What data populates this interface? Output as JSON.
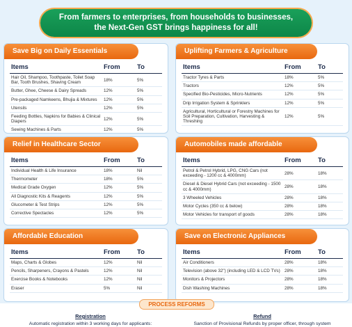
{
  "header": {
    "tagline": [
      "From farmers to enterprises, from households to businesses,",
      "the Next-Gen GST brings happiness for all!"
    ]
  },
  "panels": [
    {
      "title": "Save Big on Daily Essentials",
      "columns": [
        "Items",
        "From",
        "To"
      ],
      "rows": [
        [
          "Hair Oil, Shampoo, Toothpaste, Toilet Soap Bar, Tooth Brushes, Shaving Cream",
          "18%",
          "5%"
        ],
        [
          "Butter, Ghee, Cheese & Dairy Spreads",
          "12%",
          "5%"
        ],
        [
          "Pre-packaged Namkeens, Bhujia & Mixtures",
          "12%",
          "5%"
        ],
        [
          "Utensils",
          "12%",
          "5%"
        ],
        [
          "Feeding Bottles, Napkins for Babies & Clinical Diapers",
          "12%",
          "5%"
        ],
        [
          "Sewing Machines & Parts",
          "12%",
          "5%"
        ]
      ]
    },
    {
      "title": "Uplifting Farmers & Agriculture",
      "columns": [
        "Items",
        "From",
        "To"
      ],
      "rows": [
        [
          "Tractor Tyres & Parts",
          "18%",
          "5%"
        ],
        [
          "Tractors",
          "12%",
          "5%"
        ],
        [
          "Specified Bio-Pesticides, Micro-Nutrients",
          "12%",
          "5%"
        ],
        [
          "Drip Irrigation System & Sprinklers",
          "12%",
          "5%"
        ],
        [
          "Agricultural, Horticultural or Forestry Machines for Soil Preparation, Cultivation, Harvesting & Threshing",
          "12%",
          "5%"
        ]
      ]
    },
    {
      "title": "Relief in Healthcare Sector",
      "columns": [
        "Items",
        "From",
        "To"
      ],
      "rows": [
        [
          "Individual Health & Life Insurance",
          "18%",
          "Nil"
        ],
        [
          "Thermometer",
          "18%",
          "5%"
        ],
        [
          "Medical Grade Oxygen",
          "12%",
          "5%"
        ],
        [
          "All Diagnostic Kits & Reagents",
          "12%",
          "5%"
        ],
        [
          "Glucometer & Test Strips",
          "12%",
          "5%"
        ],
        [
          "Corrective Spectacles",
          "12%",
          "5%"
        ]
      ]
    },
    {
      "title": "Automobiles made affordable",
      "columns": [
        "Items",
        "From",
        "To"
      ],
      "rows": [
        [
          "Petrol & Petrol Hybrid, LPG, CNG Cars (not exceeding - 1200 cc & 4000mm)",
          "28%",
          "18%"
        ],
        [
          "Diesel & Diesel Hybrid Cars (not exceeding - 1500 cc & 4000mm)",
          "28%",
          "18%"
        ],
        [
          "3 Wheeled Vehicles",
          "28%",
          "18%"
        ],
        [
          "Motor Cycles (350 cc & below)",
          "28%",
          "18%"
        ],
        [
          "Motor Vehicles for transport of goods",
          "28%",
          "18%"
        ]
      ]
    },
    {
      "title": "Affordable Education",
      "columns": [
        "Items",
        "From",
        "To"
      ],
      "rows": [
        [
          "Maps, Charts & Globes",
          "12%",
          "Nil"
        ],
        [
          "Pencils, Sharpeners, Crayons & Pastels",
          "12%",
          "Nil"
        ],
        [
          "Exercise Books & Notebooks",
          "12%",
          "Nil"
        ],
        [
          "Eraser",
          "5%",
          "Nil"
        ]
      ]
    },
    {
      "title": "Save on Electronic Appliances",
      "columns": [
        "Items",
        "From",
        "To"
      ],
      "rows": [
        [
          "Air Conditioners",
          "28%",
          "18%"
        ],
        [
          "Television (above 32\") (including LED & LCD TVs)",
          "28%",
          "18%"
        ],
        [
          "Monitors & Projectors",
          "28%",
          "18%"
        ],
        [
          "Dish Washing Machines",
          "28%",
          "18%"
        ]
      ]
    }
  ],
  "process_reforms": {
    "title": "PROCESS REFORMS",
    "columns": [
      {
        "heading": "Registration",
        "text": "Automatic registration within 3 working days for applicants:"
      },
      {
        "heading": "Refund",
        "text": "Sanction of Provisional Refunds by proper officer, through system"
      }
    ]
  }
}
